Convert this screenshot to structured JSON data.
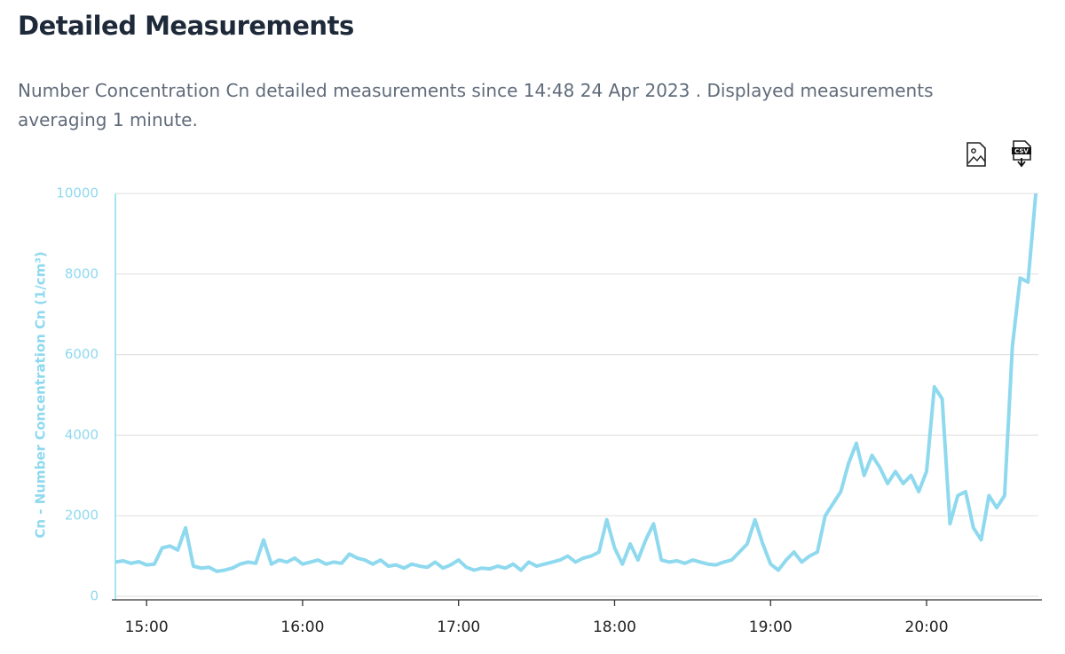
{
  "chart_data": {
    "type": "line",
    "title": "Detailed Measurements",
    "subtitle": "Number Concentration Cn detailed measurements since 14:48 24 Apr 2023 . Displayed measurements averaging 1 minute.",
    "y_label": "Cn - Number Concentration Cn (1/cm³)",
    "x": [
      "14:48",
      "14:51",
      "14:54",
      "14:57",
      "15:00",
      "15:03",
      "15:06",
      "15:09",
      "15:12",
      "15:15",
      "15:18",
      "15:21",
      "15:24",
      "15:27",
      "15:30",
      "15:33",
      "15:36",
      "15:39",
      "15:42",
      "15:45",
      "15:48",
      "15:51",
      "15:54",
      "15:57",
      "16:00",
      "16:03",
      "16:06",
      "16:09",
      "16:12",
      "16:15",
      "16:18",
      "16:21",
      "16:24",
      "16:27",
      "16:30",
      "16:33",
      "16:36",
      "16:39",
      "16:42",
      "16:45",
      "16:48",
      "16:51",
      "16:54",
      "16:57",
      "17:00",
      "17:03",
      "17:06",
      "17:09",
      "17:12",
      "17:15",
      "17:18",
      "17:21",
      "17:24",
      "17:27",
      "17:30",
      "17:33",
      "17:36",
      "17:39",
      "17:42",
      "17:45",
      "17:48",
      "17:51",
      "17:54",
      "17:57",
      "18:00",
      "18:03",
      "18:06",
      "18:09",
      "18:12",
      "18:15",
      "18:18",
      "18:21",
      "18:24",
      "18:27",
      "18:30",
      "18:33",
      "18:36",
      "18:39",
      "18:42",
      "18:45",
      "18:48",
      "18:51",
      "18:54",
      "18:57",
      "19:00",
      "19:03",
      "19:06",
      "19:09",
      "19:12",
      "19:15",
      "19:18",
      "19:21",
      "19:24",
      "19:27",
      "19:30",
      "19:33",
      "19:36",
      "19:39",
      "19:42",
      "19:45",
      "19:48",
      "19:51",
      "19:54",
      "19:57",
      "20:00",
      "20:03",
      "20:06",
      "20:09",
      "20:12",
      "20:15",
      "20:18",
      "20:21",
      "20:24",
      "20:27",
      "20:30",
      "20:33",
      "20:36",
      "20:39",
      "20:42"
    ],
    "series": [
      {
        "name": "Cn",
        "color": "#8fd9ef",
        "values": [
          850,
          880,
          820,
          860,
          780,
          800,
          1200,
          1250,
          1150,
          1700,
          750,
          700,
          720,
          620,
          650,
          700,
          800,
          850,
          820,
          1400,
          800,
          900,
          850,
          950,
          800,
          850,
          900,
          800,
          850,
          820,
          1050,
          950,
          900,
          800,
          900,
          750,
          780,
          700,
          800,
          750,
          720,
          850,
          700,
          780,
          900,
          720,
          650,
          700,
          680,
          750,
          700,
          800,
          650,
          850,
          750,
          800,
          850,
          900,
          1000,
          850,
          950,
          1000,
          1100,
          1900,
          1200,
          800,
          1300,
          900,
          1400,
          1800,
          900,
          850,
          880,
          820,
          900,
          850,
          800,
          780,
          850,
          900,
          1100,
          1300,
          1900,
          1300,
          800,
          650,
          900,
          1100,
          850,
          1000,
          1100,
          2000,
          2300,
          2600,
          3300,
          3800,
          3000,
          3500,
          3200,
          2800,
          3100,
          2800,
          3000,
          2600,
          3100,
          5200,
          4900,
          1800,
          2500,
          2600,
          1700,
          1400,
          2500,
          2200,
          2500,
          6200,
          7900,
          7800,
          10000
        ]
      }
    ],
    "xlim": [
      "14:48",
      "20:43"
    ],
    "xticks": [
      "15:00",
      "16:00",
      "17:00",
      "18:00",
      "19:00",
      "20:00"
    ],
    "ylim": [
      0,
      10000
    ],
    "yticks": [
      0,
      2000,
      4000,
      6000,
      8000,
      10000
    ],
    "grid": true
  },
  "toolbar": {
    "csv_label": "CSV"
  }
}
